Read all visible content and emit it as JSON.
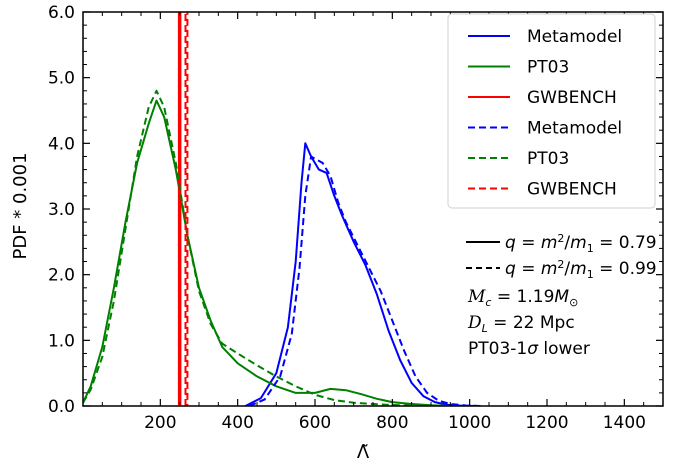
{
  "chart_data": {
    "type": "line",
    "xlabel": "Λ̃",
    "ylabel": "PDF * 0.001",
    "xlim": [
      0,
      1500
    ],
    "ylim": [
      0,
      6.0
    ],
    "xticks": [
      200,
      400,
      600,
      800,
      1000,
      1200,
      1400
    ],
    "yticks": [
      0.0,
      1.0,
      2.0,
      3.0,
      4.0,
      5.0,
      6.0
    ],
    "xtick_labels": [
      "200",
      "400",
      "600",
      "800",
      "1000",
      "1200",
      "1400"
    ],
    "ytick_labels": [
      "0.0",
      "1.0",
      "2.0",
      "3.0",
      "4.0",
      "5.0",
      "6.0"
    ],
    "legend_position": "top-right",
    "series": [
      {
        "name": "Metamodel",
        "color": "#0000ff",
        "style": "solid",
        "x": [
          420,
          460,
          500,
          530,
          550,
          565,
          575,
          590,
          610,
          630,
          650,
          670,
          700,
          730,
          760,
          790,
          820,
          850,
          880,
          910,
          940,
          980,
          1020
        ],
        "y": [
          0.0,
          0.12,
          0.5,
          1.2,
          2.2,
          3.4,
          4.0,
          3.8,
          3.6,
          3.55,
          3.2,
          2.9,
          2.5,
          2.15,
          1.7,
          1.15,
          0.7,
          0.35,
          0.15,
          0.06,
          0.02,
          0.005,
          0.0
        ]
      },
      {
        "name": "PT03",
        "color": "#008000",
        "style": "solid",
        "x": [
          0,
          20,
          50,
          80,
          110,
          140,
          170,
          190,
          210,
          240,
          270,
          300,
          330,
          360,
          400,
          450,
          500,
          550,
          600,
          640,
          680,
          720,
          760,
          800,
          850,
          900,
          950
        ],
        "y": [
          0.05,
          0.3,
          0.9,
          1.8,
          2.8,
          3.7,
          4.3,
          4.65,
          4.4,
          3.6,
          2.6,
          1.8,
          1.3,
          0.9,
          0.65,
          0.45,
          0.3,
          0.2,
          0.2,
          0.26,
          0.24,
          0.18,
          0.11,
          0.06,
          0.03,
          0.01,
          0.0
        ]
      },
      {
        "name": "GWBENCH",
        "color": "#ff0000",
        "style": "solid",
        "x": [
          248,
          248,
          252,
          252
        ],
        "y": [
          0.0,
          6.2,
          6.2,
          0.0
        ]
      },
      {
        "name": "Metamodel",
        "color": "#0000ff",
        "style": "dashed",
        "x": [
          430,
          470,
          510,
          540,
          560,
          575,
          590,
          605,
          620,
          640,
          660,
          680,
          710,
          740,
          770,
          800,
          830,
          860,
          890,
          920,
          950,
          990,
          1030
        ],
        "y": [
          0.0,
          0.1,
          0.45,
          1.1,
          2.1,
          3.2,
          3.8,
          3.75,
          3.7,
          3.5,
          3.1,
          2.8,
          2.45,
          2.1,
          1.75,
          1.3,
          0.85,
          0.45,
          0.2,
          0.08,
          0.03,
          0.008,
          0.0
        ]
      },
      {
        "name": "PT03",
        "color": "#008000",
        "style": "dashed",
        "x": [
          0,
          20,
          50,
          80,
          110,
          140,
          170,
          190,
          210,
          240,
          270,
          300,
          330,
          360,
          400,
          450,
          500,
          550,
          600,
          650,
          700,
          750,
          800,
          850,
          900
        ],
        "y": [
          0.05,
          0.25,
          0.75,
          1.6,
          2.7,
          3.8,
          4.55,
          4.8,
          4.55,
          3.7,
          2.6,
          1.75,
          1.25,
          0.95,
          0.8,
          0.62,
          0.45,
          0.3,
          0.17,
          0.09,
          0.05,
          0.03,
          0.015,
          0.005,
          0.0
        ]
      },
      {
        "name": "GWBENCH",
        "color": "#ff0000",
        "style": "dashed",
        "x": [
          265,
          265,
          270,
          270
        ],
        "y": [
          0.0,
          6.2,
          6.2,
          0.0
        ]
      }
    ],
    "annotations": [
      {
        "line_style": "solid",
        "text": "q = m2/m1 = 0.79"
      },
      {
        "line_style": "dashed",
        "text": "q = m2/m1 = 0.99"
      },
      {
        "text": "Mc = 1.19M⊙"
      },
      {
        "text": "DL = 22 Mpc"
      },
      {
        "text": "PT03-1σ lower"
      }
    ]
  }
}
